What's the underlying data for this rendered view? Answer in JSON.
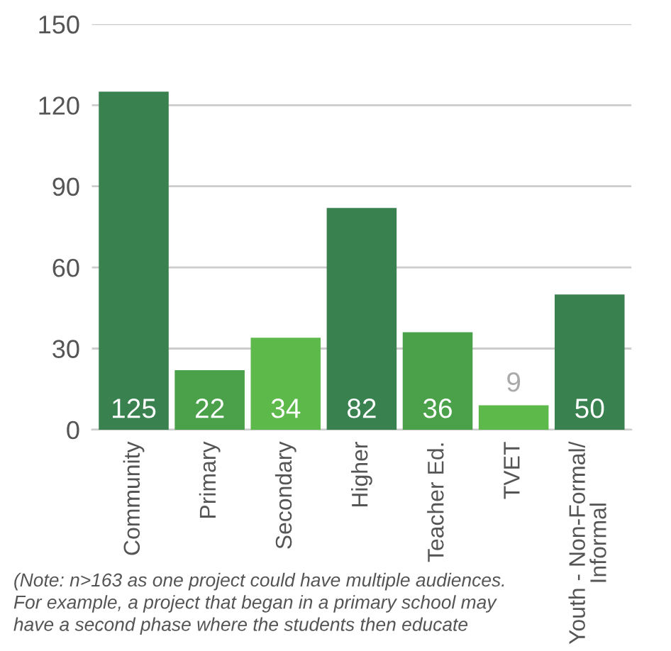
{
  "chart_data": {
    "type": "bar",
    "categories": [
      "Community",
      "Primary",
      "Secondary",
      "Higher",
      "Teacher Ed.",
      "TVET",
      "Youth - Non-Formal/\nInformal"
    ],
    "values": [
      125,
      22,
      34,
      82,
      36,
      9,
      50
    ],
    "colors": [
      "#3a8150",
      "#4aa14a",
      "#5cb94a",
      "#3a8150",
      "#4aa14a",
      "#5cb94a",
      "#3a8150"
    ],
    "ylim": [
      0,
      150
    ],
    "yticks": [
      0,
      30,
      60,
      90,
      120,
      150
    ],
    "grid": "y",
    "data_labels": true,
    "annotations": [
      "(Note: n>163 as one project could have multiple audiences.\nFor example, a project that began in a primary school may\nhave a second phase where the students then educate"
    ]
  }
}
